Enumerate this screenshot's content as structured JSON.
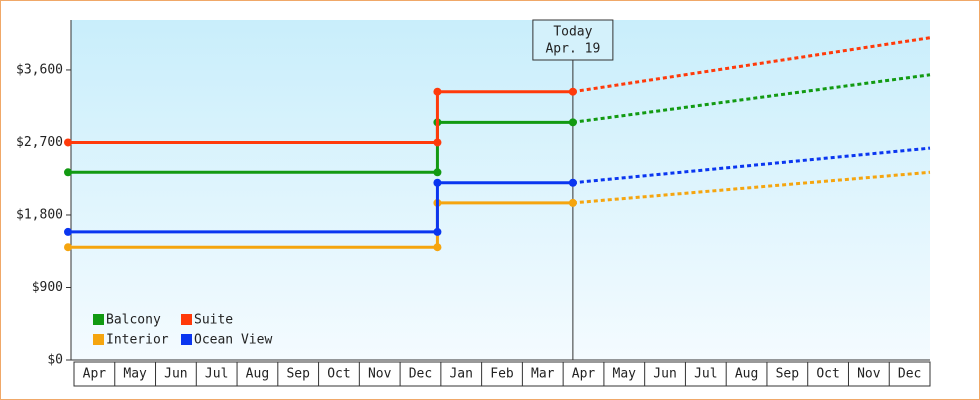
{
  "chart_data": {
    "type": "step-line",
    "categories": [
      "Apr",
      "May",
      "Jun",
      "Jul",
      "Aug",
      "Sep",
      "Oct",
      "Nov",
      "Dec",
      "Jan",
      "Feb",
      "Mar",
      "Apr",
      "May",
      "Jun",
      "Jul",
      "Aug",
      "Sep",
      "Oct",
      "Nov",
      "Dec"
    ],
    "x": [
      0,
      9,
      9,
      12.3,
      21
    ],
    "xlim": [
      0,
      21
    ],
    "series": [
      {
        "name": "Balcony",
        "color": "#129a12",
        "values": [
          2330,
          2330,
          2950,
          2950,
          3540
        ]
      },
      {
        "name": "Suite",
        "color": "#ff3a0a",
        "values": [
          2700,
          2700,
          3330,
          3330,
          4000
        ]
      },
      {
        "name": "Interior",
        "color": "#f5a50f",
        "values": [
          1400,
          1400,
          1950,
          1950,
          2330
        ]
      },
      {
        "name": "Ocean View",
        "color": "#0a36f0",
        "values": [
          1590,
          1590,
          2200,
          2200,
          2630
        ]
      }
    ],
    "ylim": [
      0,
      4220
    ],
    "yticks": [
      {
        "value": 0,
        "label": "$0"
      },
      {
        "value": 900,
        "label": "$900"
      },
      {
        "value": 1800,
        "label": "$1,800"
      },
      {
        "value": 2700,
        "label": "$2,700"
      },
      {
        "value": 3600,
        "label": "$3,600"
      }
    ],
    "today": {
      "x": 12.3,
      "label": [
        "Today",
        "Apr. 19"
      ]
    },
    "legend": "bottom-left"
  }
}
